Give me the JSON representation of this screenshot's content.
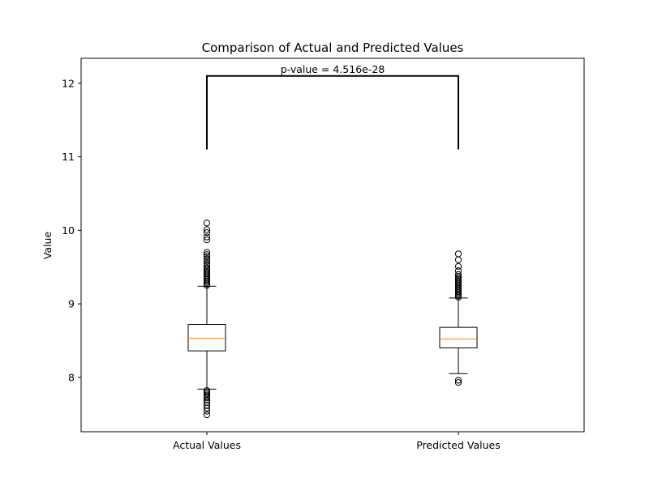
{
  "chart_data": {
    "type": "box",
    "title": "Comparison of Actual and Predicted Values",
    "xlabel": "",
    "ylabel": "Value",
    "ylim": [
      7.26,
      12.34
    ],
    "yticks": [
      8,
      9,
      10,
      11,
      12
    ],
    "ytick_labels": [
      "8",
      "9",
      "10",
      "11",
      "12"
    ],
    "categories": [
      "Actual Values",
      "Predicted Values"
    ],
    "grid": false,
    "colors": {
      "box": "#000000",
      "median": "#ff7f0e",
      "outline": "#000000"
    },
    "boxes": [
      {
        "name": "Actual Values",
        "q1": 8.36,
        "median": 8.53,
        "q3": 8.72,
        "whisker_low": 7.84,
        "whisker_high": 9.24,
        "outliers_high": [
          9.25,
          9.27,
          9.29,
          9.31,
          9.33,
          9.35,
          9.37,
          9.39,
          9.41,
          9.43,
          9.45,
          9.47,
          9.49,
          9.52,
          9.55,
          9.58,
          9.61,
          9.64,
          9.67,
          9.7,
          9.87,
          9.91,
          9.97,
          10.01,
          10.1
        ],
        "outliers_low": [
          7.82,
          7.8,
          7.78,
          7.76,
          7.74,
          7.72,
          7.69,
          7.66,
          7.62,
          7.58,
          7.54,
          7.49
        ]
      },
      {
        "name": "Predicted Values",
        "q1": 8.4,
        "median": 8.52,
        "q3": 8.68,
        "whisker_low": 8.05,
        "whisker_high": 9.08,
        "outliers_high": [
          9.09,
          9.11,
          9.13,
          9.15,
          9.17,
          9.19,
          9.21,
          9.23,
          9.25,
          9.27,
          9.29,
          9.31,
          9.33,
          9.35,
          9.37,
          9.4,
          9.45,
          9.51,
          9.6,
          9.68
        ],
        "outliers_low": [
          7.96,
          7.93
        ]
      }
    ],
    "annotation": {
      "text": "p-value = 4.516e-28",
      "bracket_bottom": 11.1,
      "bracket_top": 12.1
    }
  }
}
